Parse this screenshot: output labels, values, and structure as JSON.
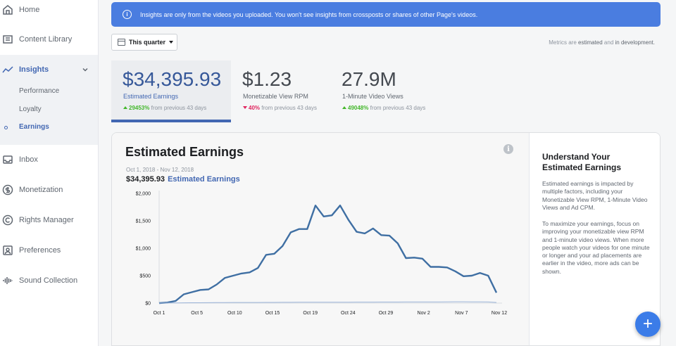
{
  "sidebar": {
    "items": [
      {
        "label": "Home",
        "icon": "home-icon"
      },
      {
        "label": "Content Library",
        "icon": "content-library-icon"
      },
      {
        "label": "Insights",
        "icon": "insights-icon"
      },
      {
        "label": "Inbox",
        "icon": "inbox-icon"
      },
      {
        "label": "Monetization",
        "icon": "dollar-icon"
      },
      {
        "label": "Rights Manager",
        "icon": "copyright-icon"
      },
      {
        "label": "Preferences",
        "icon": "preferences-icon"
      },
      {
        "label": "Sound Collection",
        "icon": "sound-wave-icon"
      }
    ],
    "insights_sub": [
      "Performance",
      "Loyalty",
      "Earnings"
    ]
  },
  "banner": {
    "text": "Insights are only from the videos you uploaded. You won't see insights from crossposts or shares of other Page's videos."
  },
  "filter": {
    "label": "This quarter"
  },
  "metrics_note": {
    "prefix": "Metrics are",
    "estimated": "estimated",
    "and": "and",
    "in_dev": "in development."
  },
  "stats": [
    {
      "value": "$34,395.93",
      "label": "Estimated Earnings",
      "change": "29453%",
      "suffix": "from previous 43 days",
      "direction": "up"
    },
    {
      "value": "$1.23",
      "label": "Monetizable View RPM",
      "change": "40%",
      "suffix": "from previous 43 days",
      "direction": "down"
    },
    {
      "value": "27.9M",
      "label": "1-Minute Video Views",
      "change": "49048%",
      "suffix": "from previous 43 days",
      "direction": "up"
    }
  ],
  "card": {
    "title": "Estimated Earnings",
    "date_range": "Oct 1, 2018 - Nov 12, 2018",
    "total": "$34,395.93",
    "total_label": "Estimated Earnings"
  },
  "side": {
    "title": "Understand Your Estimated Earnings",
    "p1": "Estimated earnings is impacted by multiple factors, including your Monetizable View RPM, 1-Minute Video Views and Ad CPM.",
    "p2": "To maximize your earnings, focus on improving your monetizable view RPM and 1-minute video views. When more people watch your videos for one minute or longer and your ad placements are earlier in the video, more ads can be shown."
  },
  "chart_data": {
    "type": "line",
    "x_ticks": [
      "Oct 1",
      "Oct 5",
      "Oct 10",
      "Oct 15",
      "Oct 19",
      "Oct 24",
      "Oct 29",
      "Nov 2",
      "Nov 7",
      "Nov 12"
    ],
    "y_ticks": [
      "$2,000",
      "$1,500",
      "$1,000",
      "$500",
      "$0"
    ],
    "ylim": [
      0,
      2000
    ],
    "xlim": [
      0,
      42
    ],
    "series": [
      {
        "values": [
          0,
          10,
          40,
          160,
          200,
          240,
          250,
          340,
          460,
          500,
          540,
          560,
          640,
          880,
          900,
          1040,
          1290,
          1350,
          1350,
          1780,
          1580,
          1600,
          1780,
          1520,
          1300,
          1270,
          1360,
          1240,
          1230,
          1090,
          820,
          830,
          810,
          660,
          660,
          650,
          580,
          490,
          500,
          550,
          500,
          190
        ],
        "color": "#3f6fa3"
      },
      {
        "values": [
          0,
          2,
          3,
          5,
          6,
          7,
          8,
          9,
          10,
          11,
          11,
          12,
          12,
          13,
          13,
          14,
          14,
          15,
          15,
          16,
          16,
          17,
          17,
          17,
          18,
          18,
          18,
          19,
          19,
          19,
          20,
          20,
          20,
          21,
          21,
          22,
          25,
          24,
          22,
          22,
          20,
          12
        ],
        "color": "#9cb4d8"
      }
    ]
  }
}
